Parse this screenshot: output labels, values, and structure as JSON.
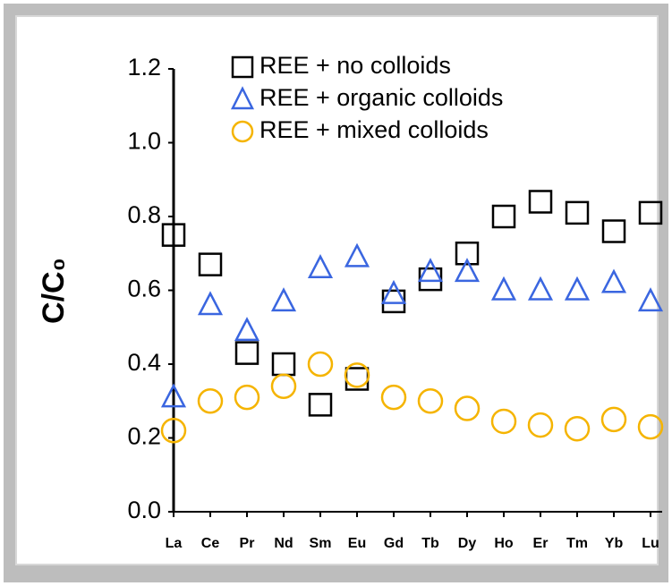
{
  "chart_data": {
    "type": "scatter",
    "y_label": "C/C₀",
    "categories": [
      "La",
      "Ce",
      "Pr",
      "Nd",
      "Sm",
      "Eu",
      "Gd",
      "Tb",
      "Dy",
      "Ho",
      "Er",
      "Tm",
      "Yb",
      "Lu"
    ],
    "series": [
      {
        "name": "REE + no colloids",
        "color": "#000000",
        "marker": "square",
        "values": [
          0.75,
          0.67,
          0.43,
          0.4,
          0.29,
          0.36,
          0.57,
          0.63,
          0.7,
          0.8,
          0.84,
          0.81,
          0.76,
          0.81
        ]
      },
      {
        "name": "REE + organic colloids",
        "color": "#3a66e0",
        "marker": "triangle",
        "values": [
          0.31,
          0.56,
          0.49,
          0.57,
          0.66,
          0.69,
          0.59,
          0.65,
          0.65,
          0.6,
          0.6,
          0.6,
          0.62,
          0.57
        ]
      },
      {
        "name": "REE + mixed colloids",
        "color": "#f5b400",
        "marker": "circle",
        "values": [
          0.22,
          0.3,
          0.31,
          0.34,
          0.4,
          0.37,
          0.31,
          0.3,
          0.28,
          0.245,
          0.235,
          0.225,
          0.25,
          0.23
        ]
      }
    ],
    "ylim": [
      0,
      1.2
    ],
    "yticks": [
      {
        "value": 0,
        "label": "0.0"
      },
      0.2,
      0.4,
      0.6,
      0.8,
      {
        "value": 1,
        "label": "1.0"
      },
      1.2
    ],
    "legend": "top"
  }
}
